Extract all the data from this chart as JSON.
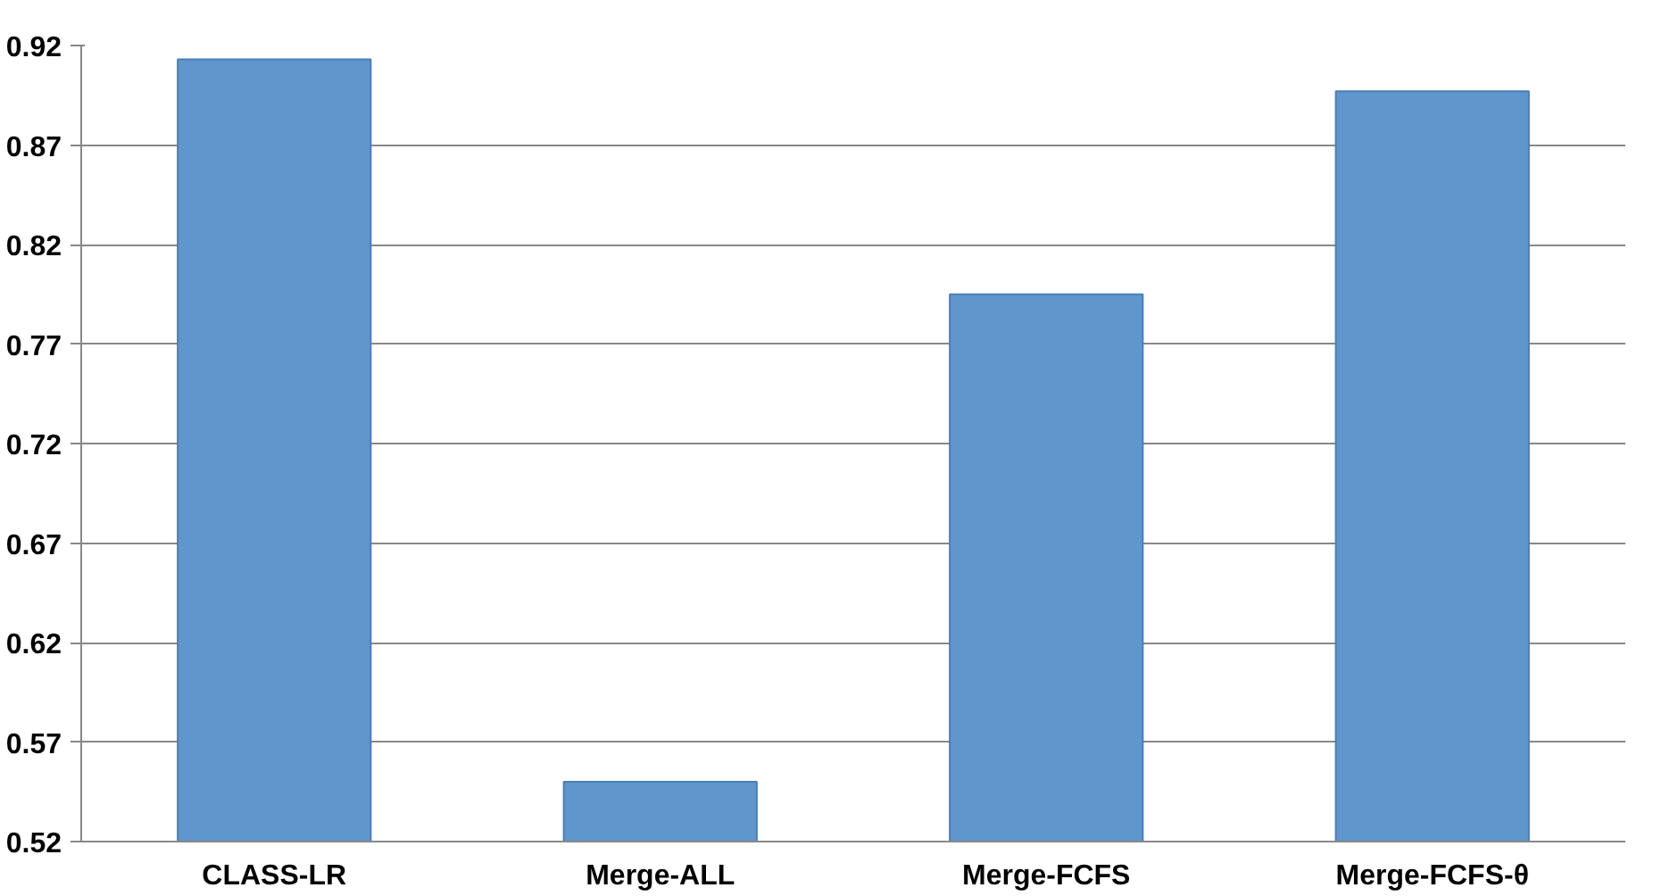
{
  "chart_data": {
    "type": "bar",
    "categories": [
      "CLASS-LR",
      "Merge-ALL",
      "Merge-FCFS",
      "Merge-FCFS-θ"
    ],
    "values": [
      0.913,
      0.55,
      0.795,
      0.897
    ],
    "color": "#5f96cb",
    "ylim": [
      0.52,
      0.92
    ],
    "yticks": [
      0.52,
      0.57,
      0.62,
      0.67,
      0.72,
      0.77,
      0.82,
      0.87,
      0.92
    ],
    "grid": "y"
  }
}
